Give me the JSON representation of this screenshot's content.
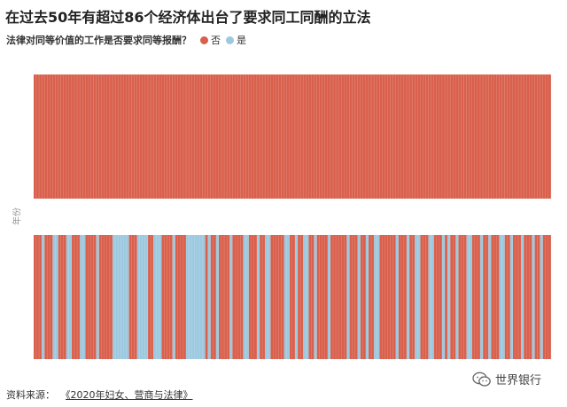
{
  "title": "在过去50年有超过86个经济体出台了要求同工同酬的立法",
  "legend": {
    "question": "法律对同等价值的工作是否要求同等报酬？",
    "items": [
      {
        "label": "否",
        "color": "#D9604C"
      },
      {
        "label": "是",
        "color": "#9DC9E0"
      }
    ]
  },
  "ylabel": "年份",
  "source": {
    "label": "资料来源：",
    "text": "《2020年妇女、营商与法律》"
  },
  "brand": {
    "name": "世界银行",
    "icon": "wechat-icon"
  },
  "chart_data": {
    "type": "heatmap",
    "title": "在过去50年有超过86个经济体出台了要求同工同酬的立法",
    "ylabel": "年份",
    "legend_position": "top-left",
    "colors": {
      "否": "#D9604C",
      "是": "#9DC9E0"
    },
    "rows": [
      {
        "count": 190,
        "yes_runs": []
      },
      {
        "count": 190,
        "yes_runs": [
          [
            3,
            3
          ],
          [
            7,
            8
          ],
          [
            12,
            13
          ],
          [
            17,
            18
          ],
          [
            23,
            23
          ],
          [
            29,
            34
          ],
          [
            38,
            41
          ],
          [
            44,
            46
          ],
          [
            51,
            51
          ],
          [
            56,
            62
          ],
          [
            64,
            64
          ],
          [
            67,
            67
          ],
          [
            72,
            72
          ],
          [
            77,
            78
          ],
          [
            82,
            82
          ],
          [
            85,
            86
          ],
          [
            92,
            93
          ],
          [
            96,
            96
          ],
          [
            99,
            100
          ],
          [
            103,
            103
          ],
          [
            108,
            108
          ],
          [
            115,
            115
          ],
          [
            119,
            119
          ],
          [
            122,
            122
          ],
          [
            125,
            126
          ],
          [
            133,
            133
          ],
          [
            137,
            137
          ],
          [
            140,
            141
          ],
          [
            145,
            146
          ],
          [
            150,
            150
          ],
          [
            152,
            152
          ],
          [
            155,
            155
          ],
          [
            159,
            160
          ],
          [
            164,
            164
          ],
          [
            167,
            167
          ],
          [
            171,
            172
          ],
          [
            175,
            175
          ],
          [
            179,
            179
          ],
          [
            183,
            183
          ],
          [
            186,
            186
          ]
        ]
      }
    ]
  }
}
